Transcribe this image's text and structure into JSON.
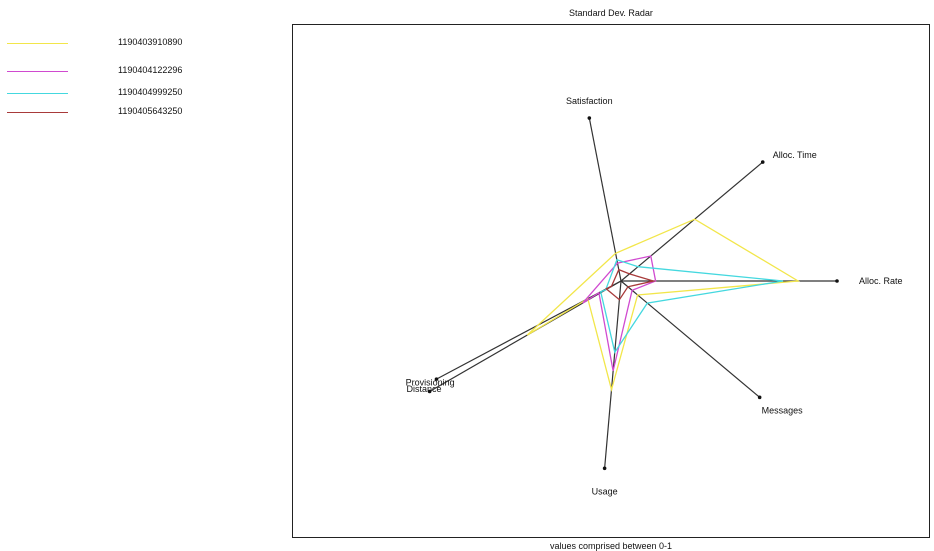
{
  "chart_data": {
    "type": "radar",
    "title": "Standard Dev. Radar",
    "xlabel": "values comprised between 0-1",
    "axes": [
      "Satisfaction",
      "Alloc. Time",
      "Alloc. Rate",
      "Messages",
      "Usage",
      "Distance",
      "Provisioning"
    ],
    "range": [
      0,
      1
    ],
    "series": [
      {
        "name": "1190403910890",
        "color": "#f2e64a",
        "values": [
          0.17,
          0.52,
          0.82,
          0.12,
          0.58,
          0.18,
          0.49
        ]
      },
      {
        "name": "1190404122296",
        "color": "#d04ad0",
        "values": [
          0.11,
          0.21,
          0.16,
          0.08,
          0.48,
          0.12,
          0.2
        ]
      },
      {
        "name": "1190404999250",
        "color": "#44d8df",
        "values": [
          0.13,
          0.12,
          0.75,
          0.19,
          0.38,
          0.11,
          0.08
        ]
      },
      {
        "name": "1190405643250",
        "color": "#a83a3a",
        "values": [
          0.07,
          0.06,
          0.15,
          0.05,
          0.1,
          0.08,
          0.05
        ]
      }
    ]
  }
}
